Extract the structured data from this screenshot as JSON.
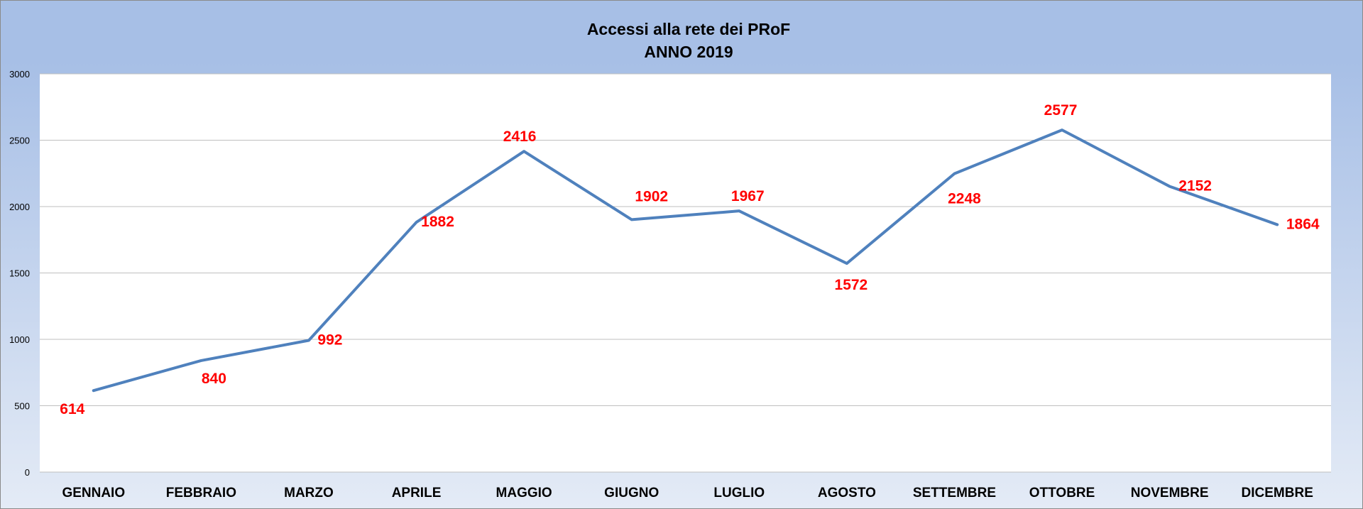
{
  "chart_data": {
    "type": "line",
    "title": "Accessi alla rete dei PRoF",
    "subtitle": "ANNO 2019",
    "xlabel": "",
    "ylabel": "",
    "categories": [
      "GENNAIO",
      "FEBBRAIO",
      "MARZO",
      "APRILE",
      "MAGGIO",
      "GIUGNO",
      "LUGLIO",
      "AGOSTO",
      "SETTEMBRE",
      "OTTOBRE",
      "NOVEMBRE",
      "DICEMBRE"
    ],
    "series": [
      {
        "values": [
          614,
          840,
          992,
          1882,
          2416,
          1902,
          1967,
          1572,
          2248,
          2577,
          2152,
          1864
        ]
      }
    ],
    "ylim": [
      0,
      3000
    ],
    "yticks": [
      0,
      500,
      1000,
      1500,
      2000,
      2500,
      3000
    ],
    "grid": true,
    "legend": "none",
    "line_color": "#4f81bd",
    "label_color": "#ff0000",
    "background_top": "#a7bfe6",
    "background_bottom": "#e4ebf6",
    "plot_background": "#ffffff"
  }
}
